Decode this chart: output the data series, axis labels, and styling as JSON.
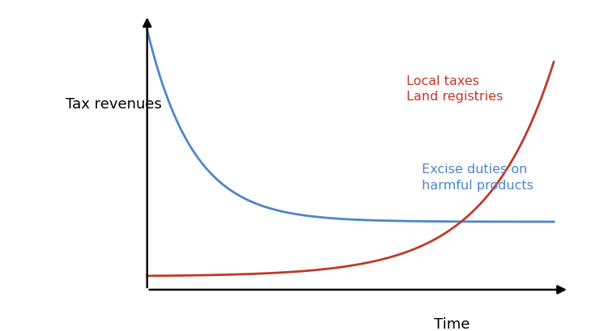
{
  "title": "",
  "ylabel": "Tax revenues",
  "xlabel": "Time",
  "ylabel_fontsize": 13,
  "xlabel_fontsize": 13,
  "blue_color": "#4E86C8",
  "red_color": "#C0392B",
  "label_local_taxes": "Local taxes\nLand registries",
  "label_excise": "Excise duties on\nharmful products",
  "label_fontsize": 11.5,
  "background_color": "#ffffff",
  "line_width": 2.0,
  "xlim": [
    0,
    10
  ],
  "ylim": [
    0,
    10
  ]
}
